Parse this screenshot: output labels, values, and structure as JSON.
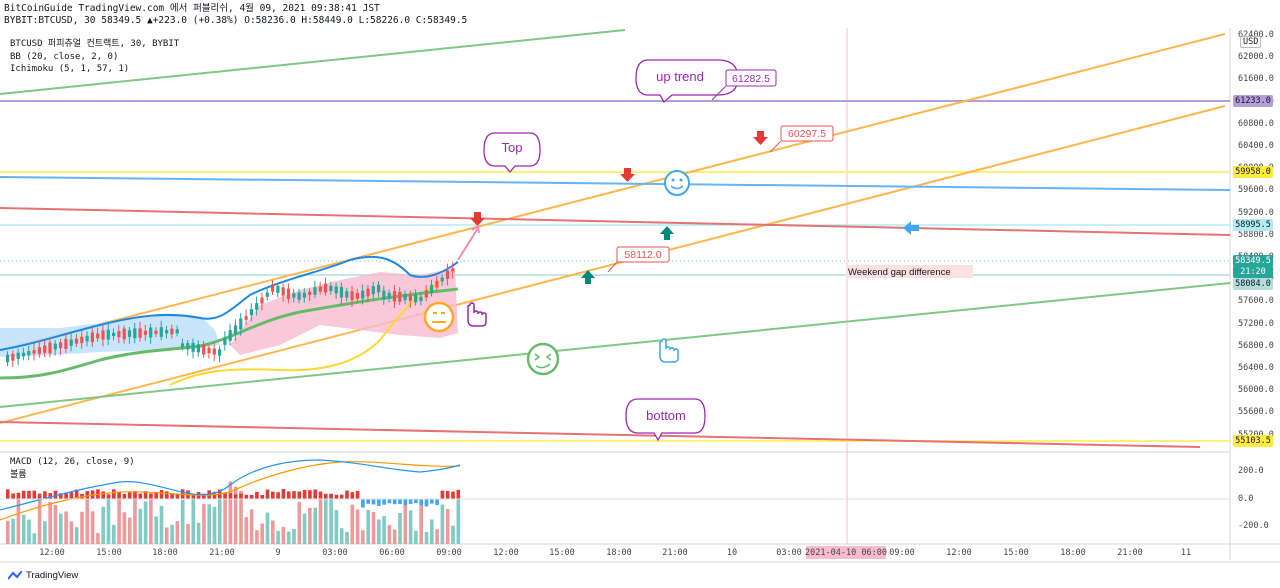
{
  "header": {
    "line1": "BitCoinGuide TradingView.com 에서 퍼블리쉬, 4월 09, 2021 09:38:41 JST",
    "line2": "BYBIT:BTCUSD, 30 58349.5 ▲+223.0 (+0.38%) O:58236.0 H:58449.0 L:58226.0 C:58349.5"
  },
  "legend": {
    "symbol": "BTCUSD 퍼피츄얼 컨트랙트, 30, BYBIT",
    "bb": "BB (20, close, 2, 0)",
    "ichimoku": "Ichimoku (5, 1, 57, 1)",
    "macd": "MACD (12, 26, close, 9)",
    "volume": "볼륨"
  },
  "currency": "USD",
  "price_axis": [
    "62400.0",
    "62000.0",
    "61600.0",
    "61200.0",
    "60800.0",
    "60400.0",
    "60000.0",
    "59600.0",
    "59200.0",
    "58800.0",
    "58400.0",
    "58000.0",
    "57600.0",
    "57200.0",
    "56800.0",
    "56400.0",
    "56000.0",
    "55600.0",
    "55200.0"
  ],
  "macd_axis": [
    "200.0",
    "0.0",
    "-200.0"
  ],
  "price_labels": [
    {
      "text": "61233.0",
      "bg": "#b39ddb",
      "fg": "#131722"
    },
    {
      "text": "59958.0",
      "bg": "#ffeb3b",
      "fg": "#131722"
    },
    {
      "text": "58995.5",
      "bg": "#b2ebf2",
      "fg": "#131722"
    },
    {
      "text": "58349.5",
      "bg": "#26a69a",
      "fg": "#ffffff"
    },
    {
      "text": "21:20",
      "bg": "#26a69a",
      "fg": "#ffffff"
    },
    {
      "text": "58084.0",
      "bg": "#b2dfdb",
      "fg": "#131722"
    },
    {
      "text": "55103.5",
      "bg": "#ffeb3b",
      "fg": "#131722"
    }
  ],
  "time_axis": [
    "12:00",
    "15:00",
    "18:00",
    "21:00",
    "9",
    "03:00",
    "06:00",
    "09:00",
    "12:00",
    "15:00",
    "18:00",
    "21:00",
    "10",
    "03:00",
    "2021-04-10  06:00",
    "09:00",
    "12:00",
    "15:00",
    "18:00",
    "21:00",
    "11"
  ],
  "annotations": {
    "up_trend": "up trend",
    "top": "Top",
    "bottom": "bottom",
    "label_61282": "61282.5",
    "label_60297": "60297.5",
    "label_58112": "58112.0",
    "weekend_gap": "Weekend gap difference"
  },
  "footer": "TradingView",
  "colors": {
    "up": "#26a69a",
    "down": "#ef5350",
    "orange": "#ffa726",
    "green": "#81c784",
    "red": "#ef5350",
    "blue": "#42a5f5",
    "yellow": "#ffeb3b",
    "purple": "#9c27b0"
  }
}
